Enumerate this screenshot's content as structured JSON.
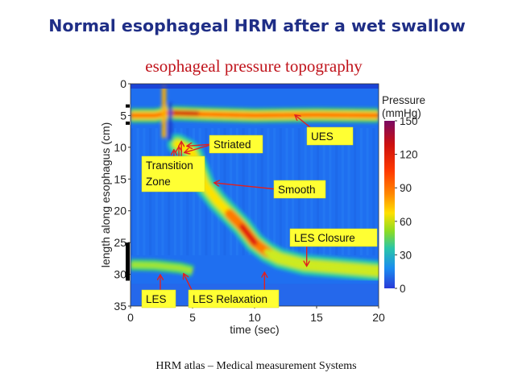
{
  "slide_title": "Normal esophageal HRM after a wet swallow",
  "subtitle": "esophageal pressure topography",
  "caption": "HRM atlas – Medical measurement Systems",
  "chart_data": {
    "type": "heatmap",
    "xlabel": "time (sec)",
    "ylabel": "length along esophagus (cm)",
    "x_ticks": [
      "0",
      "5",
      "10",
      "15",
      "20"
    ],
    "y_ticks": [
      "0",
      "5",
      "10",
      "15",
      "20",
      "25",
      "30",
      "35"
    ],
    "xlim": [
      0,
      20
    ],
    "ylim": [
      0,
      35
    ],
    "y_inverted": true,
    "colorbar": {
      "title_line1": "Pressure",
      "title_line2": "(mmHg)",
      "ticks": [
        "150",
        "120",
        "90",
        "60",
        "30",
        "0"
      ],
      "tick_values": [
        150,
        120,
        90,
        60,
        30,
        0
      ],
      "colors": [
        "#7a0a63",
        "#cc1010",
        "#ff3a00",
        "#ff8a00",
        "#ffe000",
        "#8cdc24",
        "#2ac6a8",
        "#1a8cf0",
        "#2a3ad8"
      ]
    },
    "contours": {
      "ues_band": {
        "description": "UES high pressure band",
        "points": [
          [
            0,
            5.0
          ],
          [
            2,
            5.0
          ],
          [
            3,
            4.6
          ],
          [
            6,
            4.8
          ],
          [
            10,
            5.0
          ],
          [
            15,
            4.9
          ],
          [
            20,
            5.0
          ]
        ]
      },
      "peristalsis": {
        "points": [
          [
            3.8,
            9.5
          ],
          [
            4.5,
            10.2
          ],
          [
            5,
            11
          ],
          [
            5.6,
            14
          ],
          [
            6,
            16
          ],
          [
            7,
            18.5
          ],
          [
            8,
            20.5
          ],
          [
            9,
            22.5
          ],
          [
            10,
            25
          ],
          [
            11,
            26.5
          ],
          [
            12,
            27.5
          ],
          [
            14,
            28.5
          ],
          [
            17,
            29
          ],
          [
            20,
            29.5
          ]
        ]
      },
      "les_band": {
        "points": [
          [
            0,
            28.5
          ],
          [
            2,
            28.6
          ],
          [
            4,
            29
          ],
          [
            5,
            29.5
          ]
        ]
      }
    },
    "annotations": [
      {
        "label": "Transition\nZone",
        "x": 2.5,
        "y": 17,
        "pointers": [
          [
            3.5,
            10.5
          ],
          [
            3.9,
            10
          ],
          [
            4.1,
            9.2
          ]
        ]
      },
      {
        "label": "Striated",
        "x": 7,
        "y": 10.5,
        "pointers": [
          [
            4.6,
            9.8
          ],
          [
            4.4,
            10.8
          ]
        ]
      },
      {
        "label": "UES",
        "x": 16,
        "y": 7,
        "pointers": [
          [
            13.3,
            5
          ]
        ]
      },
      {
        "label": "Smooth",
        "x": 13.5,
        "y": 17.5,
        "pointers": [
          [
            6.8,
            15.6
          ]
        ]
      },
      {
        "label": "LES Closure",
        "x": 16,
        "y": 25,
        "pointers": [
          [
            14.2,
            28.6
          ]
        ]
      },
      {
        "label": "LES",
        "x": 1.2,
        "y": 33.5,
        "pointers": [
          [
            2.4,
            30.2
          ]
        ]
      },
      {
        "label": "LES Relaxation",
        "x": 8.2,
        "y": 33.5,
        "pointers": [
          [
            4.3,
            30
          ],
          [
            10.8,
            29.8
          ]
        ]
      }
    ]
  }
}
